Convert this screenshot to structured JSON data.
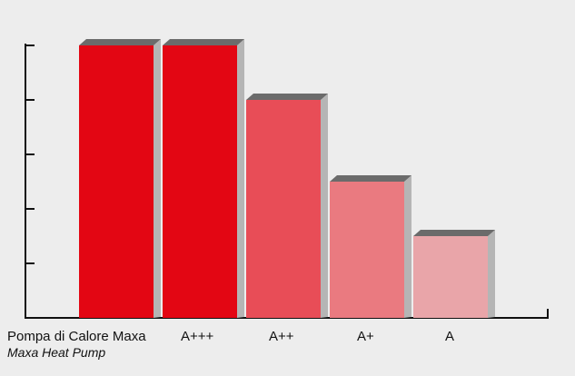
{
  "chart_data": {
    "type": "bar",
    "categories": [
      "Pompa di Calore Maxa",
      "A+++",
      "A++",
      "A+",
      "A"
    ],
    "category_sublabels": [
      "Maxa Heat Pump",
      "",
      "",
      "",
      ""
    ],
    "values": [
      5,
      5,
      4,
      2.5,
      1.5
    ],
    "ylim": [
      0,
      5.5
    ],
    "title": "",
    "xlabel": "",
    "ylabel": "",
    "grid": false,
    "colors": [
      "#e30613",
      "#e30613",
      "#e84d57",
      "#ea7a80",
      "#e9a5a9"
    ],
    "bar_top_color": "#6b6b6b",
    "bar_side_color": "#b5b5b5"
  }
}
